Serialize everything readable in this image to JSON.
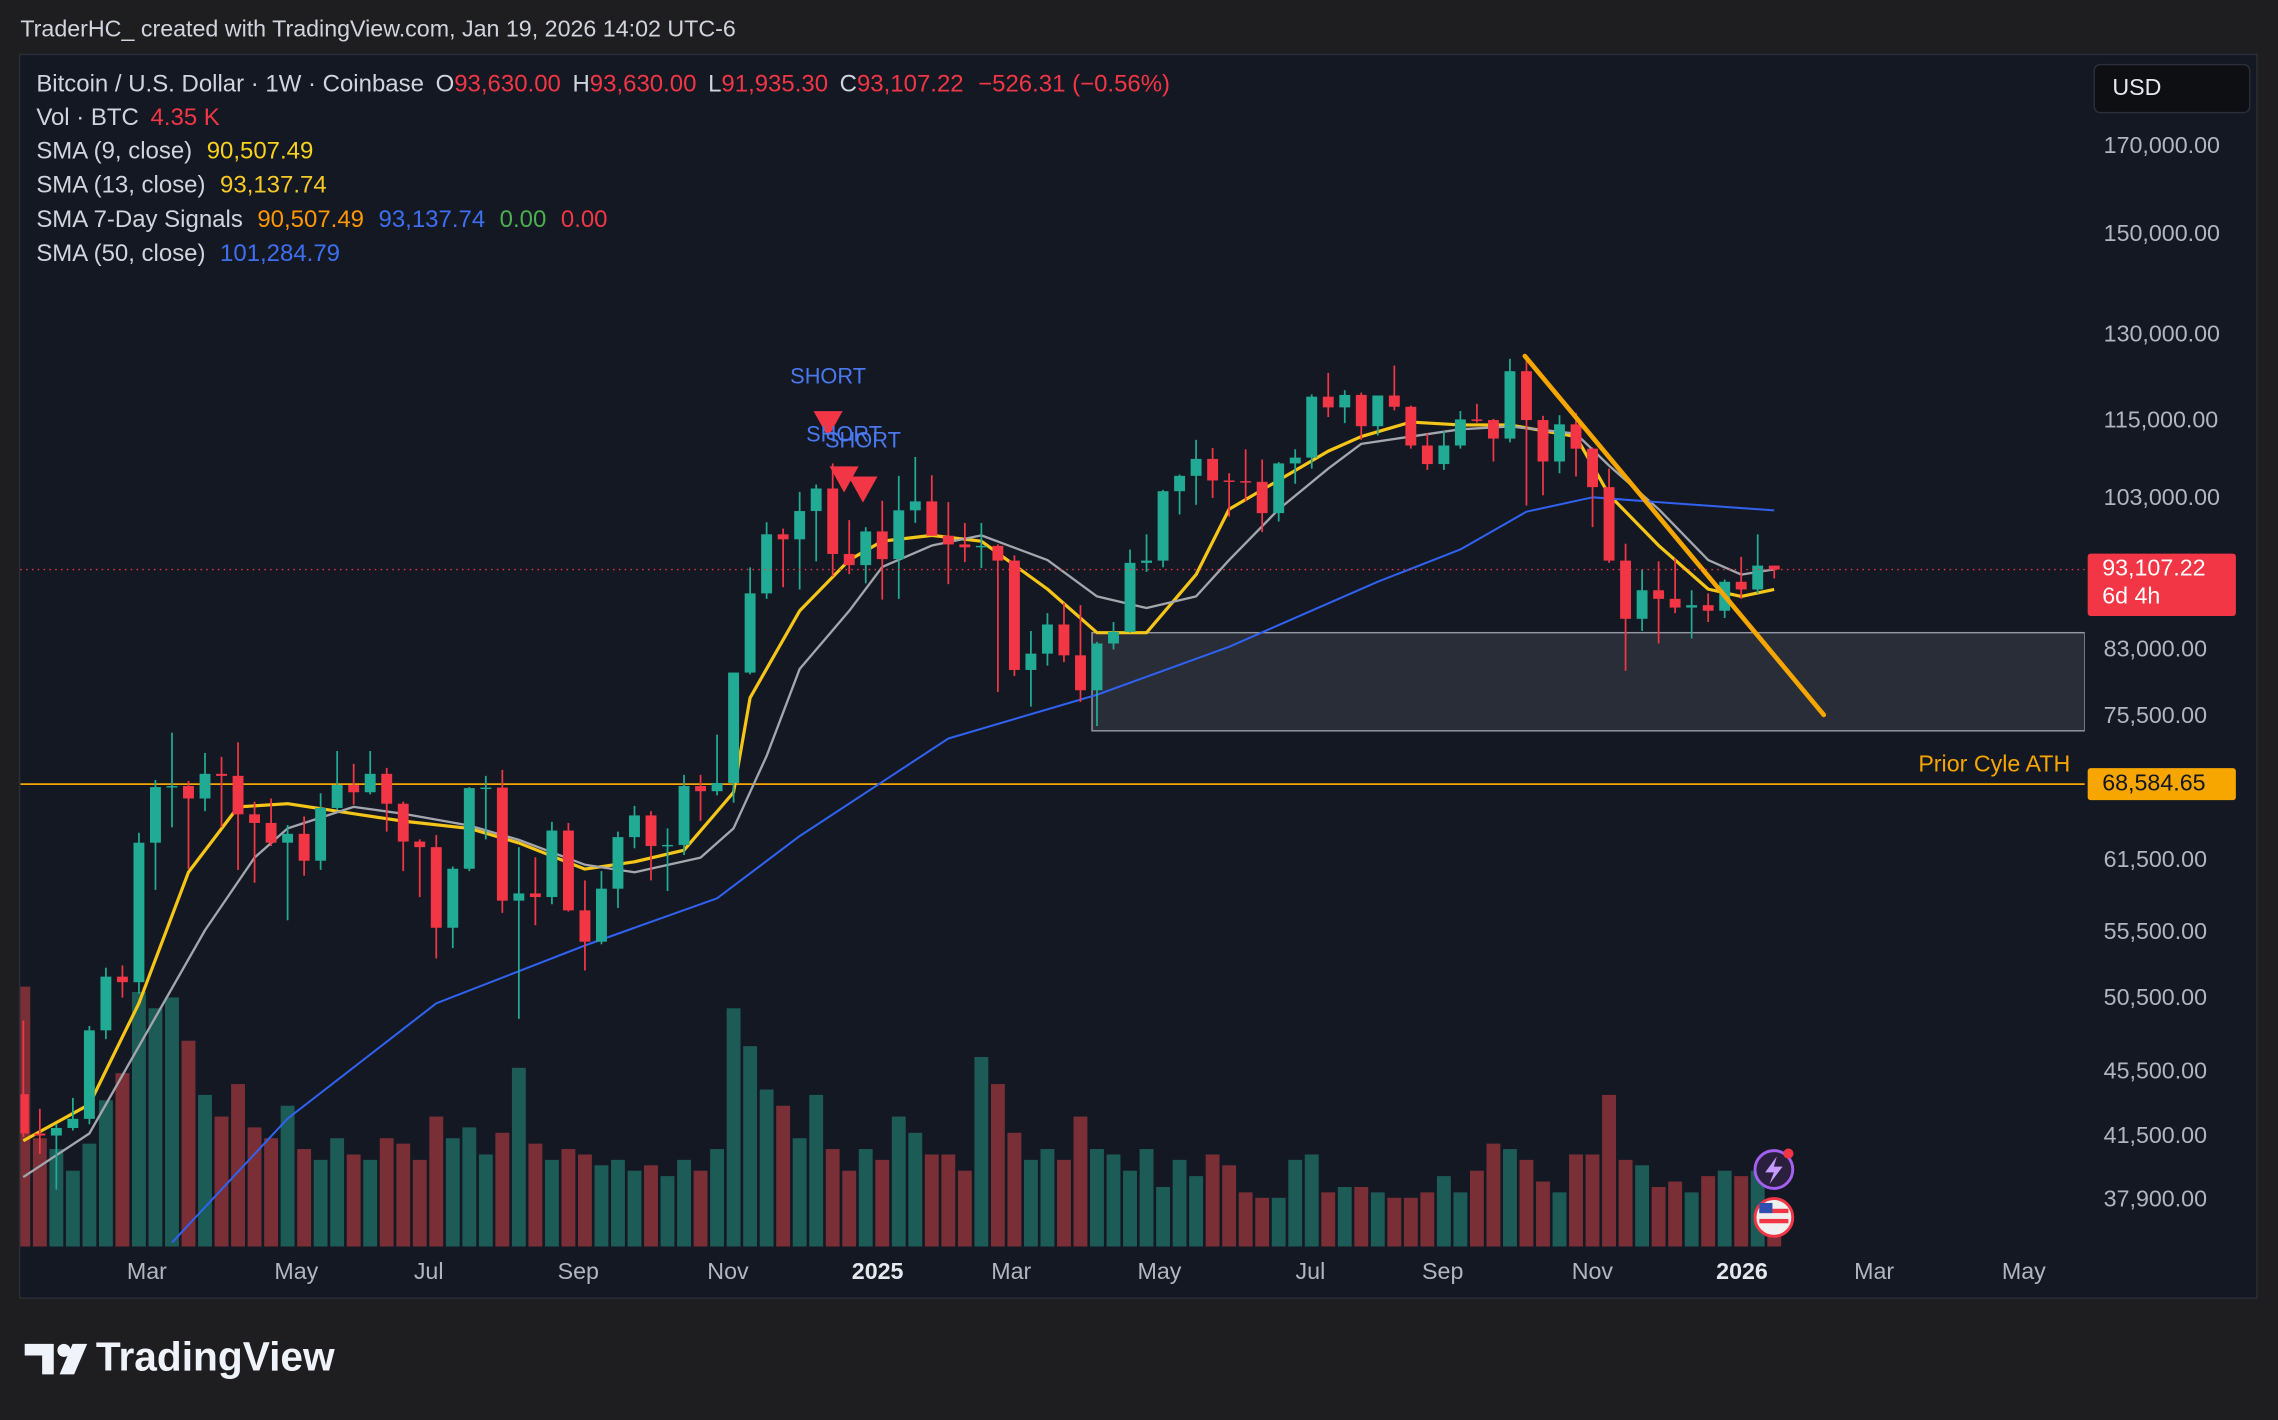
{
  "header": {
    "attribution": "TraderHC_ created with TradingView.com, Jan 19, 2026 14:02 UTC-6"
  },
  "chart_data": {
    "type": "candlestick",
    "symbol": "Bitcoin / U.S. Dollar · 1W · Coinbase",
    "ohlc_legend": [
      {
        "key": "O",
        "value": "93,630.00"
      },
      {
        "key": "H",
        "value": "93,630.00"
      },
      {
        "key": "L",
        "value": "91,935.30"
      },
      {
        "key": "C",
        "value": "93,107.22"
      }
    ],
    "change": "−526.31 (−0.56%)",
    "volume_legend": {
      "name": "Vol · BTC",
      "value": "4.35 K"
    },
    "indicators": [
      {
        "name": "SMA (9, close)",
        "values": [
          "90,507.49"
        ],
        "colors": [
          "#f7d21d"
        ]
      },
      {
        "name": "SMA (13, close)",
        "values": [
          "93,137.74"
        ],
        "colors": [
          "#f5c926"
        ]
      },
      {
        "name": "SMA 7-Day Signals",
        "values": [
          "90,507.49",
          "93,137.74",
          "0.00",
          "0.00"
        ],
        "colors": [
          "#ff9800",
          "#3d6ff0",
          "#4caf50",
          "#f23645"
        ]
      },
      {
        "name": "SMA (50, close)",
        "values": [
          "101,284.79"
        ],
        "colors": [
          "#3d6ff0"
        ]
      }
    ],
    "currency": "USD",
    "up_color": "#22ab94",
    "down_color": "#f23645",
    "volume_up_color": "#1d5b57",
    "volume_down_color": "#7a2f37",
    "log_scale": true,
    "xlim": [
      -0.18,
      124.8
    ],
    "xticks": [
      {
        "value": 7.48,
        "label": "Mar"
      },
      {
        "value": 16.53,
        "label": "May"
      },
      {
        "value": 24.54,
        "label": "Jul"
      },
      {
        "value": 33.6,
        "label": "Sep"
      },
      {
        "value": 42.66,
        "label": "Nov"
      },
      {
        "value": 51.72,
        "label": "2025"
      },
      {
        "value": 59.81,
        "label": "Mar"
      },
      {
        "value": 68.78,
        "label": "May"
      },
      {
        "value": 77.92,
        "label": "Jul"
      },
      {
        "value": 85.93,
        "label": "Sep"
      },
      {
        "value": 94.99,
        "label": "Nov"
      },
      {
        "value": 104.05,
        "label": "2026"
      },
      {
        "value": 112.05,
        "label": "Mar"
      },
      {
        "value": 121.11,
        "label": "May"
      }
    ],
    "ylim": [
      35500,
      193700
    ],
    "yticks": [
      {
        "value": 170000,
        "label": "170,000.00"
      },
      {
        "value": 150000,
        "label": "150,000.00"
      },
      {
        "value": 130000,
        "label": "130,000.00"
      },
      {
        "value": 115000,
        "label": "115,000.00"
      },
      {
        "value": 103000,
        "label": "103,000.00"
      },
      {
        "value": 83000,
        "label": "83,000.00"
      },
      {
        "value": 75500,
        "label": "75,500.00"
      },
      {
        "value": 61500,
        "label": "61,500.00"
      },
      {
        "value": 55500,
        "label": "55,500.00"
      },
      {
        "value": 50500,
        "label": "50,500.00"
      },
      {
        "value": 45500,
        "label": "45,500.00"
      },
      {
        "value": 41500,
        "label": "41,500.00"
      },
      {
        "value": 37900,
        "label": "37,900.00"
      }
    ],
    "y2lim": [
      0,
      220
    ],
    "ohlc": [
      [
        44100,
        48970,
        41500,
        41700
      ],
      [
        41700,
        43200,
        40500,
        41580
      ],
      [
        41580,
        42250,
        38500,
        42030
      ],
      [
        42030,
        43870,
        41880,
        42580
      ],
      [
        42580,
        48600,
        42250,
        48300
      ],
      [
        48300,
        52800,
        47700,
        52140
      ],
      [
        52140,
        52980,
        50600,
        51730
      ],
      [
        51730,
        64000,
        50900,
        63100
      ],
      [
        63100,
        69000,
        59000,
        68300
      ],
      [
        68300,
        73800,
        64500,
        68400
      ],
      [
        68400,
        68900,
        60800,
        67200
      ],
      [
        67200,
        71700,
        66000,
        69600
      ],
      [
        69600,
        71300,
        64500,
        69400
      ],
      [
        69400,
        72800,
        60700,
        65700
      ],
      [
        65700,
        66900,
        59600,
        64900
      ],
      [
        64900,
        67200,
        62800,
        63100
      ],
      [
        63100,
        64700,
        56500,
        63900
      ],
      [
        63900,
        65500,
        60200,
        61500
      ],
      [
        61500,
        67700,
        60700,
        66300
      ],
      [
        66300,
        71900,
        66100,
        68500
      ],
      [
        68500,
        70600,
        66600,
        67800
      ],
      [
        67800,
        71900,
        67600,
        69600
      ],
      [
        69600,
        70200,
        64100,
        66700
      ],
      [
        66700,
        66900,
        60600,
        63200
      ],
      [
        63200,
        63400,
        58400,
        62700
      ],
      [
        62700,
        63800,
        53500,
        55900
      ],
      [
        55900,
        61000,
        54300,
        60800
      ],
      [
        60800,
        68300,
        60600,
        68200
      ],
      [
        68200,
        69400,
        63400,
        68250
      ],
      [
        68250,
        70000,
        57100,
        58100
      ],
      [
        58100,
        62700,
        49100,
        58700
      ],
      [
        58700,
        61800,
        56100,
        58400
      ],
      [
        58400,
        65000,
        57800,
        64200
      ],
      [
        64200,
        64900,
        57200,
        57300
      ],
      [
        57300,
        59800,
        52600,
        54800
      ],
      [
        54800,
        60600,
        54600,
        59100
      ],
      [
        59100,
        64100,
        57500,
        63600
      ],
      [
        63600,
        66500,
        62600,
        65600
      ],
      [
        65600,
        66000,
        59800,
        62800
      ],
      [
        62800,
        64400,
        58900,
        62900
      ],
      [
        62900,
        69500,
        62000,
        68400
      ],
      [
        68400,
        69500,
        65100,
        67900
      ],
      [
        67900,
        73600,
        67500,
        68700
      ],
      [
        68700,
        80400,
        66800,
        80400
      ],
      [
        80400,
        93400,
        80200,
        90000
      ],
      [
        90000,
        99600,
        89300,
        97900
      ],
      [
        97900,
        98700,
        90800,
        97200
      ],
      [
        97200,
        104000,
        90500,
        101200
      ],
      [
        101200,
        105100,
        94200,
        104500
      ],
      [
        104500,
        108300,
        92200,
        95200
      ],
      [
        95200,
        99900,
        92500,
        93700
      ],
      [
        93700,
        98900,
        91300,
        98300
      ],
      [
        98300,
        102700,
        89200,
        94500
      ],
      [
        94500,
        106400,
        89300,
        101300
      ],
      [
        101300,
        109300,
        99500,
        102600
      ],
      [
        102600,
        106500,
        97700,
        97700
      ],
      [
        97700,
        102500,
        91200,
        96500
      ],
      [
        96500,
        99500,
        94100,
        96100
      ],
      [
        96100,
        99500,
        93300,
        96300
      ],
      [
        96300,
        96500,
        78200,
        94300
      ],
      [
        94300,
        95000,
        80000,
        80700
      ],
      [
        80700,
        85300,
        76600,
        82600
      ],
      [
        82600,
        87500,
        81200,
        86100
      ],
      [
        86100,
        88800,
        81600,
        82400
      ],
      [
        82400,
        88500,
        77100,
        78400
      ],
      [
        78400,
        84000,
        74500,
        83800
      ],
      [
        83800,
        86400,
        83100,
        85200
      ],
      [
        85200,
        95800,
        85100,
        94000
      ],
      [
        94000,
        97900,
        92800,
        94300
      ],
      [
        94300,
        104300,
        93400,
        104100
      ],
      [
        104100,
        106600,
        100700,
        106400
      ],
      [
        106400,
        112000,
        102100,
        109000
      ],
      [
        109000,
        110700,
        103100,
        105700
      ],
      [
        105700,
        106800,
        100400,
        105600
      ],
      [
        105600,
        110500,
        102600,
        105500
      ],
      [
        105500,
        108900,
        98200,
        100900
      ],
      [
        100900,
        108500,
        99700,
        108300
      ],
      [
        108300,
        110500,
        105200,
        109200
      ],
      [
        109200,
        119500,
        107500,
        119100
      ],
      [
        119100,
        123200,
        115700,
        117300
      ],
      [
        117300,
        120200,
        114700,
        119400
      ],
      [
        119400,
        119800,
        112000,
        114200
      ],
      [
        114200,
        119300,
        112700,
        119300
      ],
      [
        119300,
        124500,
        116800,
        117400
      ],
      [
        117400,
        117600,
        110600,
        111100
      ],
      [
        111100,
        113000,
        107300,
        108200
      ],
      [
        108200,
        113400,
        107300,
        111100
      ],
      [
        111100,
        116700,
        110600,
        115300
      ],
      [
        115300,
        117900,
        114800,
        115200
      ],
      [
        115200,
        115400,
        108600,
        112200
      ],
      [
        112200,
        125700,
        111600,
        123500
      ],
      [
        123500,
        126200,
        102000,
        115200
      ],
      [
        115200,
        115900,
        103500,
        108600
      ],
      [
        108600,
        116000,
        106800,
        114500
      ],
      [
        114500,
        116400,
        106300,
        110600
      ],
      [
        110600,
        110800,
        98900,
        104700
      ],
      [
        104700,
        107500,
        94000,
        94300
      ],
      [
        94300,
        96600,
        80600,
        86800
      ],
      [
        86800,
        93100,
        85300,
        90400
      ],
      [
        90400,
        94200,
        83800,
        89300
      ],
      [
        89300,
        94600,
        87500,
        88200
      ],
      [
        88200,
        90400,
        84400,
        88500
      ],
      [
        88500,
        90000,
        86400,
        87800
      ],
      [
        87800,
        91800,
        86900,
        91500
      ],
      [
        91500,
        94800,
        89300,
        90500
      ],
      [
        90500,
        97900,
        90000,
        93630
      ],
      [
        93630,
        93630,
        91935.3,
        93107.22
      ]
    ],
    "volume": [
      48,
      20,
      18,
      14,
      19,
      27,
      32,
      47,
      44,
      46,
      38,
      28,
      24,
      30,
      22,
      20,
      26,
      18,
      16,
      20,
      17,
      16,
      20,
      19,
      16,
      24,
      20,
      22,
      17,
      21,
      33,
      19,
      16,
      18,
      17,
      15,
      16,
      14,
      15,
      13,
      16,
      14,
      18,
      44,
      37,
      29,
      26,
      20,
      28,
      18,
      14,
      18,
      16,
      24,
      21,
      17,
      17,
      14,
      35,
      30,
      21,
      16,
      18,
      16,
      24,
      18,
      17,
      14,
      18,
      11,
      16,
      13,
      17,
      15,
      10,
      9,
      9,
      16,
      17,
      10,
      11,
      11,
      10,
      9,
      9,
      10,
      13,
      10,
      14,
      19,
      18,
      16,
      12,
      10,
      17,
      17,
      28,
      16,
      15,
      11,
      12,
      10,
      13,
      14,
      13,
      14,
      4.35
    ],
    "series": [
      {
        "color": "#f5c518",
        "width": 2.2,
        "x": [
          0,
          4,
          7,
          10,
          13,
          16,
          20,
          23,
          27,
          30,
          34,
          37,
          40,
          43,
          44,
          47,
          50,
          52,
          55,
          58,
          62,
          65,
          68,
          71,
          73,
          76,
          79,
          81,
          84,
          87,
          90,
          94,
          96,
          99,
          102,
          104,
          106
        ],
        "values": [
          41270,
          43460,
          50200,
          60500,
          66400,
          66700,
          65750,
          65070,
          64400,
          63080,
          60770,
          61400,
          62430,
          67790,
          77570,
          87780,
          94380,
          96950,
          97760,
          96950,
          90550,
          85100,
          85100,
          92440,
          101460,
          105750,
          110220,
          112520,
          114870,
          114400,
          114400,
          112520,
          103580,
          96350,
          90550,
          89610,
          90507.49
        ]
      },
      {
        "color": "#a3a6ad",
        "width": 1.6,
        "x": [
          0,
          4,
          7,
          11,
          14,
          16,
          20,
          23,
          27,
          30,
          34,
          37,
          41,
          43,
          45,
          47,
          50,
          52,
          55,
          58,
          62,
          65,
          68,
          71,
          73,
          76,
          79,
          81,
          84,
          87,
          90,
          94,
          96,
          99,
          102,
          104,
          106
        ],
        "values": [
          39190,
          41700,
          47210,
          55700,
          61770,
          64400,
          66400,
          65750,
          64670,
          63350,
          61150,
          60500,
          61770,
          64400,
          71400,
          80800,
          87780,
          93450,
          96350,
          97760,
          94380,
          89610,
          88150,
          89610,
          94380,
          101460,
          107520,
          111370,
          112520,
          113690,
          114170,
          112980,
          107970,
          101460,
          94380,
          92440,
          93137.74
        ]
      },
      {
        "color": "#2f62f0",
        "width": 1.4,
        "x": [
          9,
          16,
          25,
          34,
          42,
          47,
          56,
          65,
          73,
          82,
          87,
          91,
          95,
          100,
          106
        ],
        "values": [
          35700,
          42600,
          50200,
          54500,
          58300,
          63700,
          73200,
          77900,
          83400,
          91500,
          95800,
          101100,
          103200,
          102300,
          101284.79
        ]
      }
    ],
    "price_line": {
      "label": "93,107.22",
      "countdown": "6d 4h",
      "color": "#f23645"
    },
    "ath": {
      "value": 68584.65,
      "label": "68,584.65",
      "text": "Prior Cyle ATH",
      "color": "#f7a600"
    },
    "zone": {
      "x0": 64.7,
      "top": 85100,
      "bottom": 74000
    },
    "trendline": {
      "x": [
        90.9,
        109
      ],
      "values": [
        126200,
        75700
      ],
      "color": "#f7a600"
    },
    "signals": [
      {
        "label": "SHORT"
      },
      {
        "label": "SHORT"
      },
      {
        "label": "SHORT"
      }
    ]
  },
  "footer": {
    "logo": "TradingView"
  }
}
